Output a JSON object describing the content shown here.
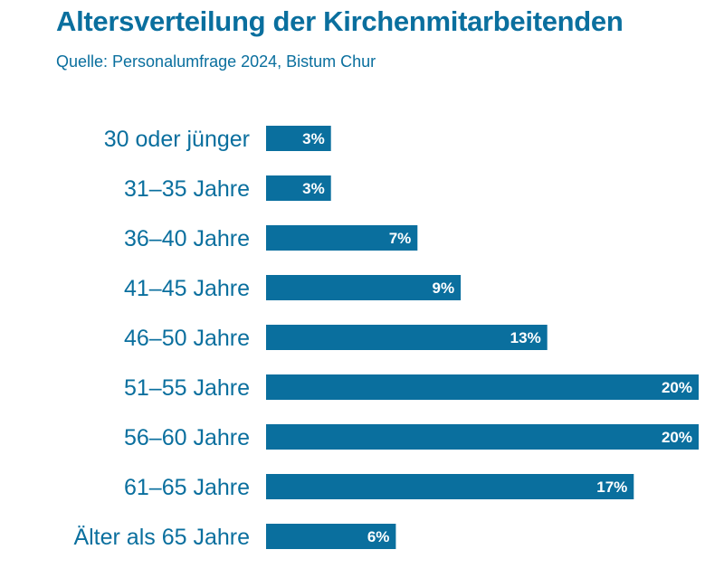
{
  "colors": {
    "accent": "#0a6f9e",
    "bar": "#0a6f9e",
    "value_text": "#ffffff",
    "background": "#ffffff"
  },
  "chart_data": {
    "type": "bar",
    "orientation": "horizontal",
    "title": "Altersverteilung der Kirchenmitarbeitenden",
    "subtitle": "Quelle: Personalumfrage 2024, Bistum Chur",
    "categories": [
      "30 oder jünger",
      "31–35 Jahre",
      "36–40 Jahre",
      "41–45 Jahre",
      "46–50 Jahre",
      "51–55 Jahre",
      "56–60 Jahre",
      "61–65 Jahre",
      "Älter als 65 Jahre"
    ],
    "values": [
      3,
      3,
      7,
      9,
      13,
      20,
      20,
      17,
      6
    ],
    "value_labels": [
      "3%",
      "3%",
      "7%",
      "9%",
      "13%",
      "20%",
      "20%",
      "17%",
      "6%"
    ],
    "unit": "%",
    "xlim": [
      0,
      20
    ],
    "grid": false,
    "legend": "none"
  }
}
